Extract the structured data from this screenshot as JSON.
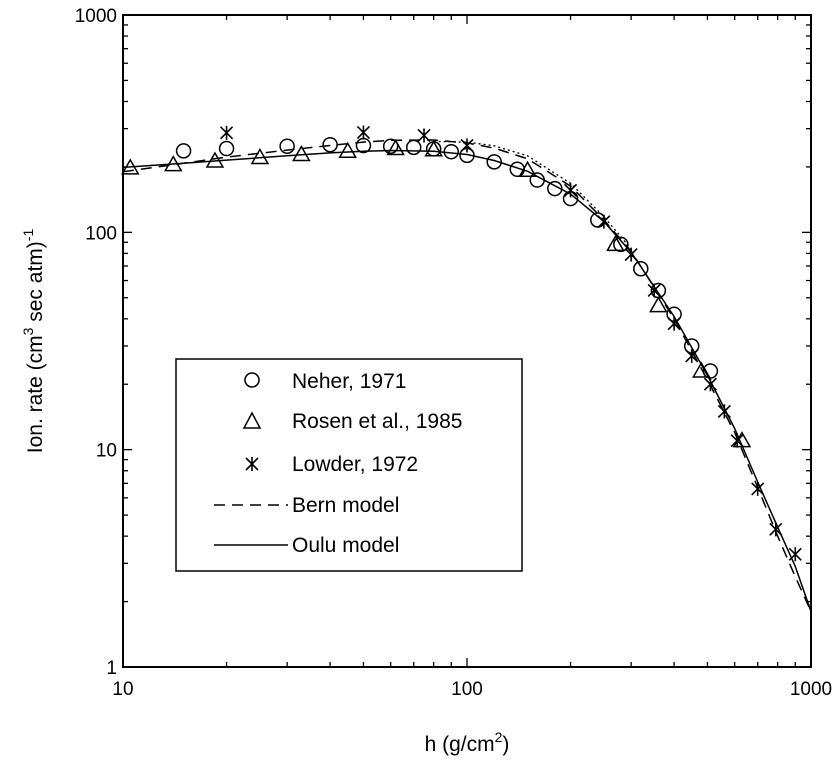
{
  "chart_data": {
    "type": "scatter",
    "xscale": "log",
    "yscale": "log",
    "xlim": [
      10,
      1000
    ],
    "ylim": [
      1,
      1000
    ],
    "x_ticks": [
      "10",
      "100",
      "1000"
    ],
    "y_ticks": [
      "1",
      "10",
      "100",
      "1000"
    ],
    "xlabel": "h (g/cm",
    "xlabel_sup": "2",
    "xlabel_end": ")",
    "ylabel": "Ion. rate (cm",
    "ylabel_sup": "3",
    "ylabel_mid": " sec atm)",
    "ylabel_sup2": "-1",
    "legend_position": "center-left",
    "series": [
      {
        "name": "Neher, 1971",
        "marker": "circle",
        "x": [
          15,
          20,
          30,
          40,
          50,
          60,
          70,
          80,
          90,
          100,
          120,
          140,
          160,
          180,
          200,
          240,
          280,
          320,
          360,
          400,
          450,
          510
        ],
        "y": [
          237,
          243,
          249,
          253,
          251,
          249,
          246,
          242,
          235,
          226,
          211,
          195,
          174,
          159,
          143,
          114,
          88,
          68,
          54,
          42,
          30,
          23
        ]
      },
      {
        "name": "Rosen et al., 1985",
        "marker": "triangle",
        "x": [
          10.5,
          14,
          18.5,
          25,
          33,
          45,
          62,
          80,
          150,
          270,
          360,
          480,
          630
        ],
        "y": [
          198,
          205,
          213,
          221,
          228,
          236,
          243,
          240,
          193,
          88,
          46,
          23,
          11
        ]
      },
      {
        "name": "Lowder, 1972",
        "marker": "asterisk",
        "x": [
          20,
          50,
          75,
          100,
          200,
          250,
          300,
          350,
          400,
          450,
          510,
          560,
          610,
          700,
          790,
          900
        ],
        "y": [
          287,
          288,
          279,
          251,
          156,
          112,
          79,
          54,
          38,
          27,
          20,
          15,
          11,
          6.6,
          4.3,
          3.3
        ]
      },
      {
        "name": "Bern model",
        "line": "dashed",
        "x": [
          10,
          15,
          20,
          30,
          40,
          50,
          60,
          80,
          100,
          120,
          150,
          200,
          250,
          300,
          400,
          500,
          600,
          700,
          800,
          900,
          1000
        ],
        "y": [
          190,
          208,
          222,
          239,
          251,
          260,
          265,
          266,
          258,
          244,
          218,
          163,
          114,
          82,
          40,
          21,
          12,
          6.7,
          4.0,
          2.6,
          1.8
        ]
      },
      {
        "name": "Oulu model",
        "line": "solid",
        "x": [
          10,
          15,
          20,
          30,
          40,
          50,
          60,
          80,
          100,
          120,
          150,
          200,
          250,
          300,
          400,
          500,
          600,
          700,
          800,
          900,
          1000
        ],
        "y": [
          199,
          208,
          215,
          225,
          232,
          236,
          238,
          236,
          228,
          214,
          191,
          150,
          112,
          81,
          41,
          22,
          12.5,
          7.1,
          4.4,
          2.9,
          1.8
        ]
      },
      {
        "line": "dotted",
        "x": [
          80,
          100,
          120,
          150,
          200,
          250,
          300
        ],
        "y": [
          262,
          260,
          250,
          225,
          168,
          118,
          84
        ]
      }
    ]
  }
}
